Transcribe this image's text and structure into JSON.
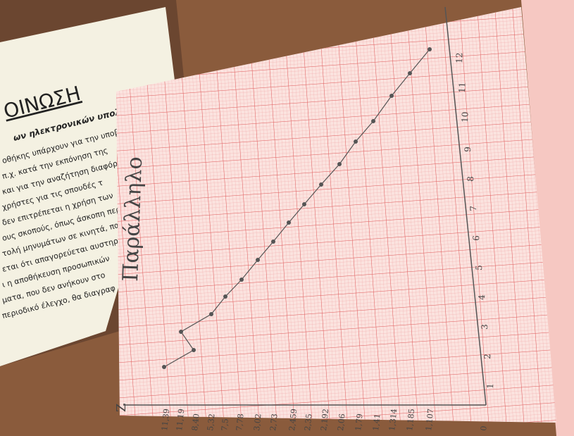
{
  "document": {
    "heading": "ΟΙΝΩΣΗ",
    "subheading": "ων ηλεκτρονικών υπολογιστών.",
    "lines": [
      "οθήκης υπάρχουν για την υποβ",
      "π.χ. κατά την εκπόνηση της",
      "και για την αναζήτηση διαφόρω",
      "χρήστες για τις σπουδές τ",
      "δεν επιτρέπεται η χρήση των",
      "ους σκοπούς, όπως άσκοπη περ",
      "τολή μηνυμάτων σε κινητά, πα",
      "εται ότι απαγορεύεται αυστηρά",
      "ι η αποθήκευση προσωπικών",
      "ματα, που δεν ανήκουν στο",
      "περιοδικό έλεγχο, θα διαγραφ"
    ]
  },
  "graph": {
    "title": "Παράλληλο",
    "axis_label": "Z",
    "bottom_labels": [
      "11,39",
      "11,19",
      "8,40",
      "5,32",
      "7,5",
      "7,78",
      "3,02",
      "2,73",
      "2,459",
      "2,35",
      "2,192",
      "2,06",
      "1,79",
      "1,41",
      "1,314",
      "1,185",
      "1,107",
      "0"
    ],
    "side_labels": [
      "1",
      "2",
      "3",
      "4",
      "5",
      "6",
      "7",
      "8",
      "9",
      "10",
      "11",
      "12"
    ]
  }
}
